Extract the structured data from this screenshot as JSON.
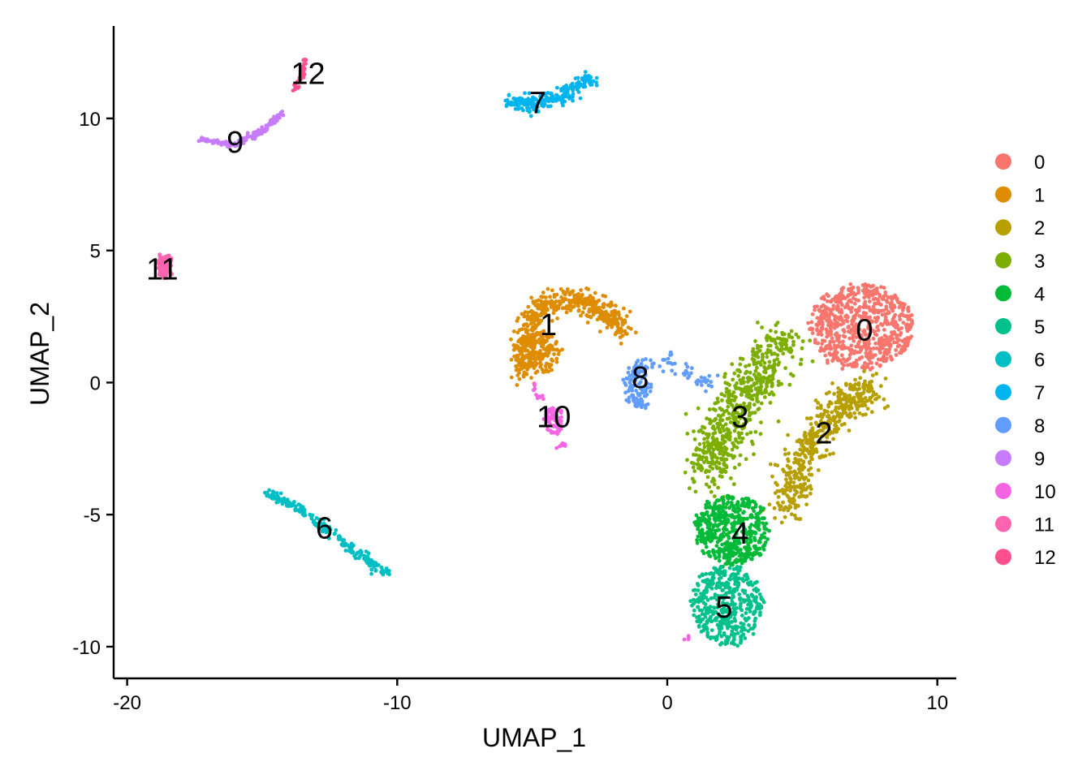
{
  "chart_data": {
    "type": "scatter",
    "xlabel": "UMAP_1",
    "ylabel": "UMAP_2",
    "xlim": [
      -20.5,
      10.7
    ],
    "ylim": [
      -11.2,
      13.5
    ],
    "xticks": [
      {
        "value": -20,
        "label": "-20"
      },
      {
        "value": -10,
        "label": "-10"
      },
      {
        "value": 0,
        "label": "0"
      },
      {
        "value": 10,
        "label": "10"
      }
    ],
    "yticks": [
      {
        "value": -10,
        "label": "-10"
      },
      {
        "value": -5,
        "label": "-5"
      },
      {
        "value": 0,
        "label": "0"
      },
      {
        "value": 5,
        "label": "5"
      },
      {
        "value": 10,
        "label": "10"
      }
    ],
    "grid": false,
    "legend_position": "right",
    "series": [
      {
        "name": "0",
        "color": "#F8766D",
        "label_pos": [
          7.3,
          2.0
        ],
        "shapes": [
          {
            "kind": "ellipse",
            "cx": 7.2,
            "cy": 2.1,
            "rx": 1.9,
            "ry": 1.6,
            "n": 700
          }
        ]
      },
      {
        "name": "1",
        "color": "#DE8C00",
        "label_pos": [
          -4.4,
          2.2
        ],
        "shapes": [
          {
            "kind": "path",
            "pts": [
              [
                -5.2,
                0.3
              ],
              [
                -5.3,
                1.5
              ],
              [
                -4.8,
                2.8
              ],
              [
                -3.5,
                3.2
              ],
              [
                -2.5,
                2.8
              ],
              [
                -1.6,
                1.9
              ]
            ],
            "spread": 0.45,
            "n": 520
          },
          {
            "kind": "ellipse",
            "cx": -4.6,
            "cy": 1.2,
            "rx": 0.6,
            "ry": 0.8,
            "n": 120
          }
        ]
      },
      {
        "name": "2",
        "color": "#B79F00",
        "label_pos": [
          5.8,
          -1.9
        ],
        "shapes": [
          {
            "kind": "path",
            "pts": [
              [
                7.5,
                -0.3
              ],
              [
                6.5,
                -0.8
              ],
              [
                5.5,
                -2.0
              ],
              [
                4.8,
                -3.5
              ],
              [
                4.5,
                -4.8
              ]
            ],
            "spread": 0.7,
            "n": 480
          }
        ]
      },
      {
        "name": "3",
        "color": "#7CAE00",
        "label_pos": [
          2.7,
          -1.3
        ],
        "shapes": [
          {
            "kind": "path",
            "pts": [
              [
                4.3,
                1.5
              ],
              [
                3.6,
                0.5
              ],
              [
                2.6,
                -0.8
              ],
              [
                1.9,
                -2.3
              ],
              [
                1.6,
                -3.5
              ]
            ],
            "spread": 0.9,
            "n": 620
          }
        ]
      },
      {
        "name": "4",
        "color": "#00BA38",
        "label_pos": [
          2.7,
          -5.7
        ],
        "shapes": [
          {
            "kind": "ellipse",
            "cx": 2.4,
            "cy": -5.6,
            "rx": 1.4,
            "ry": 1.3,
            "n": 500
          }
        ]
      },
      {
        "name": "5",
        "color": "#00C08B",
        "label_pos": [
          2.1,
          -8.5
        ],
        "shapes": [
          {
            "kind": "ellipse",
            "cx": 2.2,
            "cy": -8.4,
            "rx": 1.3,
            "ry": 1.5,
            "n": 420
          }
        ]
      },
      {
        "name": "6",
        "color": "#00BFC4",
        "label_pos": [
          -12.7,
          -5.5
        ],
        "shapes": [
          {
            "kind": "path",
            "pts": [
              [
                -14.8,
                -4.2
              ],
              [
                -13.3,
                -5.0
              ],
              [
                -11.8,
                -6.2
              ],
              [
                -10.3,
                -7.3
              ]
            ],
            "spread": 0.2,
            "n": 200
          }
        ]
      },
      {
        "name": "7",
        "color": "#00B4F0",
        "label_pos": [
          -4.8,
          10.6
        ],
        "shapes": [
          {
            "kind": "path",
            "pts": [
              [
                -6.0,
                10.7
              ],
              [
                -4.8,
                10.5
              ],
              [
                -3.6,
                11.0
              ],
              [
                -2.8,
                11.5
              ]
            ],
            "spread": 0.3,
            "n": 220
          }
        ]
      },
      {
        "name": "8",
        "color": "#619CFF",
        "label_pos": [
          -1.0,
          0.2
        ],
        "shapes": [
          {
            "kind": "ellipse",
            "cx": -1.1,
            "cy": -0.1,
            "rx": 0.5,
            "ry": 0.9,
            "n": 110
          },
          {
            "kind": "path",
            "pts": [
              [
                -0.8,
                0.8
              ],
              [
                0.1,
                0.8
              ],
              [
                1.0,
                0.2
              ],
              [
                1.8,
                0.0
              ]
            ],
            "spread": 0.3,
            "n": 50
          }
        ]
      },
      {
        "name": "9",
        "color": "#C77CFF",
        "label_pos": [
          -16.0,
          9.1
        ],
        "shapes": [
          {
            "kind": "path",
            "pts": [
              [
                -17.3,
                9.2
              ],
              [
                -16.0,
                9.0
              ],
              [
                -15.0,
                9.5
              ],
              [
                -14.3,
                10.2
              ]
            ],
            "spread": 0.1,
            "n": 150
          }
        ]
      },
      {
        "name": "10",
        "color": "#F564E3",
        "label_pos": [
          -4.2,
          -1.3
        ],
        "shapes": [
          {
            "kind": "ellipse",
            "cx": -4.2,
            "cy": -1.4,
            "rx": 0.35,
            "ry": 0.5,
            "n": 75
          },
          {
            "kind": "path",
            "pts": [
              [
                -5.0,
                -0.2
              ],
              [
                -4.6,
                -0.7
              ]
            ],
            "spread": 0.15,
            "n": 10
          },
          {
            "kind": "ellipse",
            "cx": -3.9,
            "cy": -2.4,
            "rx": 0.1,
            "ry": 0.1,
            "n": 8
          },
          {
            "kind": "ellipse",
            "cx": 0.7,
            "cy": -9.7,
            "rx": 0.1,
            "ry": 0.05,
            "n": 5
          }
        ]
      },
      {
        "name": "11",
        "color": "#FF64B0",
        "label_pos": [
          -18.7,
          4.3
        ],
        "shapes": [
          {
            "kind": "ellipse",
            "cx": -18.6,
            "cy": 4.4,
            "rx": 0.25,
            "ry": 0.4,
            "n": 120
          }
        ]
      },
      {
        "name": "12",
        "color": "#FF4F8E",
        "label_pos": [
          -13.3,
          11.7
        ],
        "shapes": [
          {
            "kind": "path",
            "pts": [
              [
                -13.8,
                11.1
              ],
              [
                -13.5,
                11.7
              ],
              [
                -13.4,
                12.2
              ]
            ],
            "spread": 0.1,
            "n": 40
          }
        ]
      }
    ]
  }
}
